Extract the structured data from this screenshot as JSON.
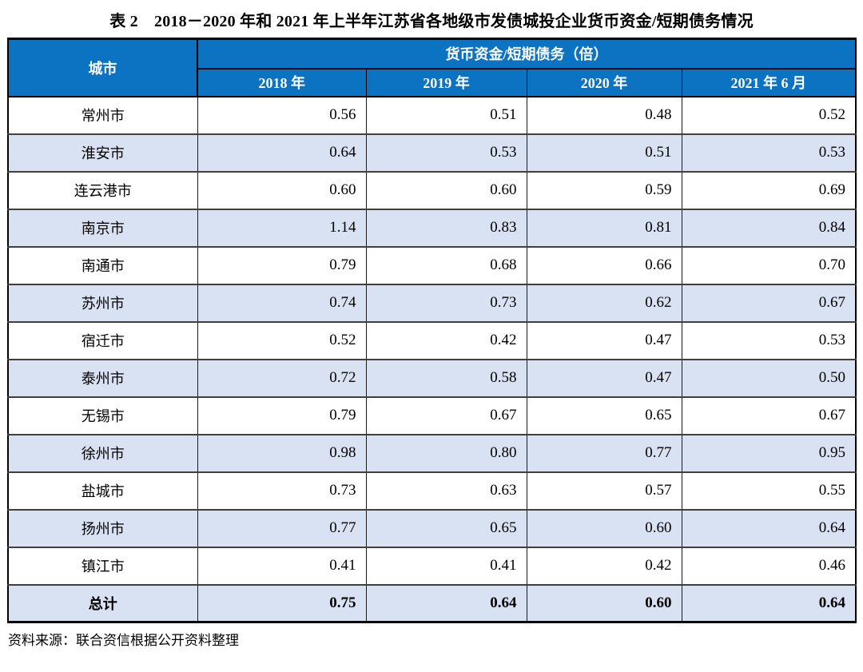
{
  "title": "表 2　2018－2020 年和 2021 年上半年江苏省各地级市发债城投企业货币资金/短期债务情况",
  "source_note": "资料来源：联合资信根据公开资料整理",
  "colors": {
    "header_bg": "#0C72C2",
    "header_text": "#FFFFFF",
    "alt_row_bg": "#D9E2F3",
    "row_bg": "#FFFFFF",
    "border": "#000000"
  },
  "chart_data": {
    "type": "table",
    "city_header": "城市",
    "group_header": "货币资金/短期债务（倍）",
    "year_headers": [
      "2018 年",
      "2019 年",
      "2020 年",
      "2021 年 6 月"
    ],
    "rows": [
      {
        "city": "常州市",
        "values": [
          "0.56",
          "0.51",
          "0.48",
          "0.52"
        ]
      },
      {
        "city": "淮安市",
        "values": [
          "0.64",
          "0.53",
          "0.51",
          "0.53"
        ]
      },
      {
        "city": "连云港市",
        "values": [
          "0.60",
          "0.60",
          "0.59",
          "0.69"
        ]
      },
      {
        "city": "南京市",
        "values": [
          "1.14",
          "0.83",
          "0.81",
          "0.84"
        ]
      },
      {
        "city": "南通市",
        "values": [
          "0.79",
          "0.68",
          "0.66",
          "0.70"
        ]
      },
      {
        "city": "苏州市",
        "values": [
          "0.74",
          "0.73",
          "0.62",
          "0.67"
        ]
      },
      {
        "city": "宿迁市",
        "values": [
          "0.52",
          "0.42",
          "0.47",
          "0.53"
        ]
      },
      {
        "city": "泰州市",
        "values": [
          "0.72",
          "0.58",
          "0.47",
          "0.50"
        ]
      },
      {
        "city": "无锡市",
        "values": [
          "0.79",
          "0.67",
          "0.65",
          "0.67"
        ]
      },
      {
        "city": "徐州市",
        "values": [
          "0.98",
          "0.80",
          "0.77",
          "0.95"
        ]
      },
      {
        "city": "盐城市",
        "values": [
          "0.73",
          "0.63",
          "0.57",
          "0.55"
        ]
      },
      {
        "city": "扬州市",
        "values": [
          "0.77",
          "0.65",
          "0.60",
          "0.64"
        ]
      },
      {
        "city": "镇江市",
        "values": [
          "0.41",
          "0.41",
          "0.42",
          "0.46"
        ]
      }
    ],
    "total_row": {
      "label": "总计",
      "values": [
        "0.75",
        "0.64",
        "0.60",
        "0.64"
      ]
    }
  }
}
